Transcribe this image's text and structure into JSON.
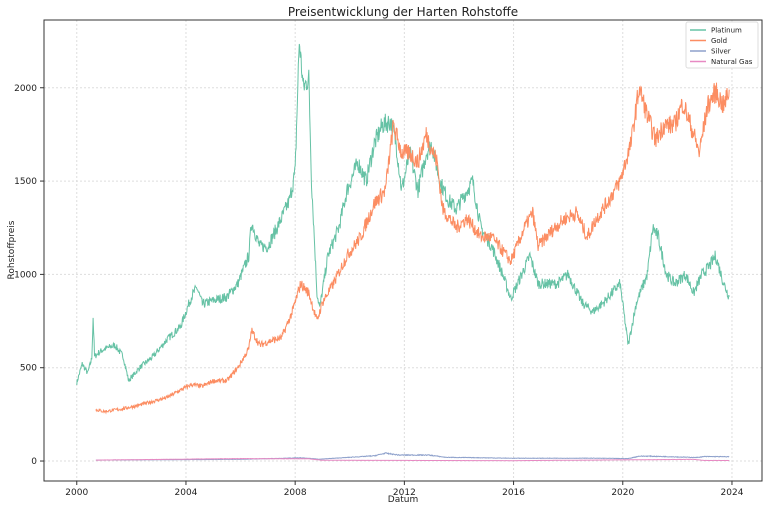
{
  "chart_data": {
    "type": "line",
    "title": "Preisentwicklung der Harten Rohstoffe",
    "xlabel": "Datum",
    "ylabel": "Rohstoffpreis",
    "xlim": [
      1998.8,
      2025.1
    ],
    "ylim": [
      -107,
      2363
    ],
    "xticks": [
      2000,
      2004,
      2008,
      2012,
      2016,
      2020,
      2024
    ],
    "xtick_labels": [
      "2000",
      "2004",
      "2008",
      "2012",
      "2016",
      "2020",
      "2024"
    ],
    "yticks": [
      0,
      500,
      1000,
      1500,
      2000
    ],
    "ytick_labels": [
      "0",
      "500",
      "1000",
      "1500",
      "2000"
    ],
    "grid": true,
    "legend_position": "top-right",
    "series": [
      {
        "name": "Platinum",
        "color": "#66c2a5",
        "x": [
          2000.0,
          2000.2,
          2000.4,
          2000.55,
          2000.6,
          2000.65,
          2000.8,
          2001.0,
          2001.4,
          2001.7,
          2001.9,
          2002.3,
          2002.8,
          2003.3,
          2003.8,
          2004.2,
          2004.4,
          2004.6,
          2005.0,
          2005.5,
          2005.9,
          2006.3,
          2006.4,
          2006.7,
          2007.0,
          2007.5,
          2007.8,
          2008.0,
          2008.15,
          2008.3,
          2008.5,
          2008.6,
          2008.8,
          2008.9,
          2009.2,
          2009.6,
          2009.9,
          2010.3,
          2010.6,
          2010.9,
          2011.2,
          2011.5,
          2011.7,
          2011.9,
          2012.2,
          2012.5,
          2012.8,
          2013.0,
          2013.3,
          2013.6,
          2013.9,
          2014.3,
          2014.5,
          2014.8,
          2015.2,
          2015.6,
          2015.9,
          2016.3,
          2016.6,
          2016.9,
          2017.3,
          2017.6,
          2018.0,
          2018.5,
          2018.9,
          2019.3,
          2019.6,
          2019.9,
          2020.2,
          2020.5,
          2020.9,
          2021.1,
          2021.3,
          2021.6,
          2021.9,
          2022.3,
          2022.6,
          2022.9,
          2023.2,
          2023.4,
          2023.7,
          2023.9
        ],
        "y": [
          420,
          520,
          470,
          550,
          770,
          560,
          580,
          600,
          620,
          560,
          430,
          500,
          560,
          650,
          720,
          880,
          930,
          840,
          860,
          880,
          950,
          1100,
          1280,
          1150,
          1150,
          1300,
          1400,
          1550,
          2250,
          2000,
          2050,
          1500,
          900,
          820,
          1100,
          1250,
          1450,
          1600,
          1500,
          1700,
          1800,
          1820,
          1700,
          1450,
          1650,
          1450,
          1650,
          1700,
          1500,
          1400,
          1350,
          1450,
          1500,
          1250,
          1150,
          1000,
          870,
          1000,
          1100,
          950,
          950,
          950,
          1000,
          850,
          800,
          850,
          900,
          950,
          620,
          850,
          1000,
          1250,
          1200,
          1000,
          950,
          1000,
          900,
          1000,
          1050,
          1100,
          950,
          880
        ]
      },
      {
        "name": "Gold",
        "color": "#fc8d62",
        "x": [
          2000.7,
          2001.0,
          2001.7,
          2002.3,
          2002.8,
          2003.3,
          2003.8,
          2004.2,
          2004.6,
          2005.0,
          2005.5,
          2005.9,
          2006.3,
          2006.4,
          2006.7,
          2007.0,
          2007.5,
          2007.9,
          2008.2,
          2008.5,
          2008.8,
          2009.0,
          2009.4,
          2009.9,
          2010.4,
          2010.9,
          2011.3,
          2011.6,
          2011.9,
          2012.2,
          2012.5,
          2012.8,
          2013.2,
          2013.4,
          2013.9,
          2014.3,
          2014.8,
          2015.2,
          2015.9,
          2016.4,
          2016.7,
          2016.9,
          2017.5,
          2017.9,
          2018.3,
          2018.7,
          2019.0,
          2019.5,
          2019.9,
          2020.3,
          2020.6,
          2020.9,
          2021.2,
          2021.5,
          2021.9,
          2022.2,
          2022.6,
          2022.8,
          2023.1,
          2023.4,
          2023.7,
          2023.9
        ],
        "y": [
          275,
          265,
          280,
          300,
          320,
          340,
          380,
          410,
          400,
          430,
          430,
          500,
          600,
          700,
          620,
          640,
          660,
          800,
          950,
          900,
          750,
          850,
          950,
          1100,
          1200,
          1380,
          1450,
          1800,
          1650,
          1650,
          1600,
          1750,
          1600,
          1350,
          1250,
          1300,
          1200,
          1200,
          1070,
          1250,
          1330,
          1150,
          1250,
          1300,
          1330,
          1200,
          1290,
          1400,
          1500,
          1700,
          2000,
          1850,
          1720,
          1800,
          1800,
          1920,
          1750,
          1650,
          1900,
          1980,
          1900,
          1990
        ]
      },
      {
        "name": "Silver",
        "color": "#8da0cb",
        "x": [
          2000.7,
          2005.9,
          2008.2,
          2008.9,
          2010.9,
          2011.3,
          2011.8,
          2012.9,
          2013.5,
          2016.0,
          2019.0,
          2020.2,
          2020.6,
          2021.0,
          2022.7,
          2023.0,
          2023.9
        ],
        "y": [
          5,
          9,
          17,
          10,
          28,
          42,
          32,
          32,
          20,
          15,
          15,
          13,
          26,
          26,
          19,
          24,
          23
        ]
      },
      {
        "name": "Natural Gas",
        "color": "#e78ac3",
        "x": [
          2000.7,
          2005.9,
          2008.5,
          2009.0,
          2016.0,
          2022.6,
          2023.0,
          2023.9
        ],
        "y": [
          5,
          13,
          12,
          4,
          2,
          9,
          3,
          3
        ]
      }
    ]
  }
}
